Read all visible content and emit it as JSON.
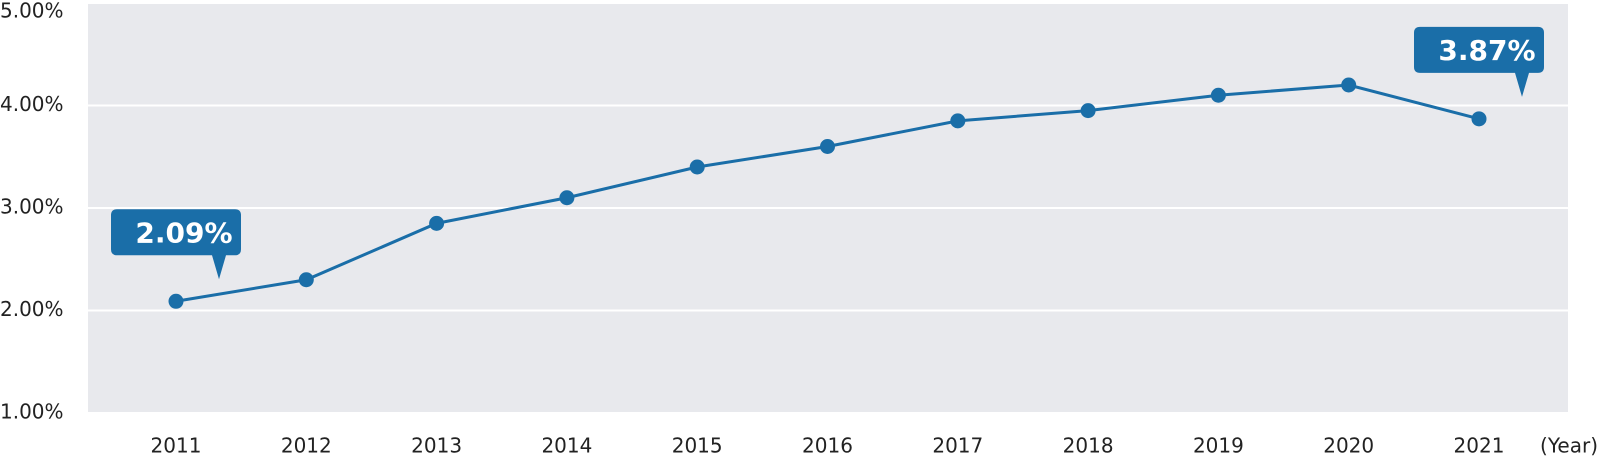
{
  "chart_data": {
    "type": "line",
    "categories": [
      "2011",
      "2012",
      "2013",
      "2014",
      "2015",
      "2016",
      "2017",
      "2018",
      "2019",
      "2020",
      "2021"
    ],
    "x_label": "(Year)",
    "series": [
      {
        "color": "#1a6ea8",
        "values": [
          2.09,
          2.3,
          2.85,
          3.1,
          3.4,
          3.6,
          3.85,
          3.95,
          4.1,
          4.2,
          3.87
        ],
        "value_labels": [
          "2.09%",
          null,
          null,
          null,
          null,
          null,
          null,
          null,
          null,
          null,
          "3.87%"
        ]
      }
    ],
    "ylim": [
      1,
      5
    ],
    "yticks": [
      {
        "value": 1,
        "label": "1.00%"
      },
      {
        "value": 2,
        "label": "2.00%"
      },
      {
        "value": 3,
        "label": "3.00%"
      },
      {
        "value": 4,
        "label": "4.00%"
      },
      {
        "value": 5,
        "label": "5.00%"
      }
    ],
    "grid": true
  }
}
